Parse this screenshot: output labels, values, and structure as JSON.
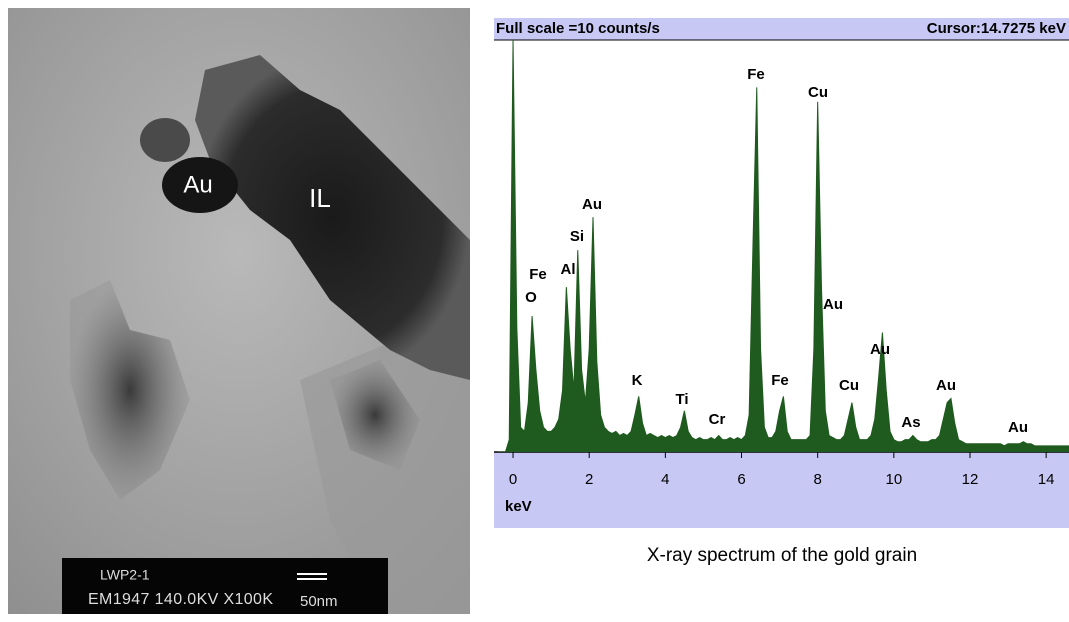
{
  "micrograph": {
    "labels": [
      "Au",
      "IL"
    ],
    "scale_bar": {
      "line1": "LWP2-1",
      "line2": "EM1947 140.0KV X100K",
      "scale": "50nm"
    }
  },
  "chart_data": {
    "type": "area",
    "title": "Full scale =10  counts/s",
    "cursor": "Cursor:14.7275 keV",
    "xlabel": "keV",
    "caption": "X-ray spectrum of the gold grain",
    "color": "#1f5a1f",
    "xlim": [
      -0.5,
      14.6
    ],
    "xticks": [
      0,
      2,
      4,
      6,
      8,
      10,
      12,
      14
    ],
    "ylim": [
      0,
      10
    ],
    "x": [
      -0.4,
      -0.3,
      -0.2,
      -0.1,
      0.0,
      0.1,
      0.2,
      0.3,
      0.4,
      0.5,
      0.6,
      0.7,
      0.8,
      0.9,
      1.0,
      1.1,
      1.2,
      1.3,
      1.4,
      1.5,
      1.6,
      1.7,
      1.8,
      1.9,
      2.0,
      2.1,
      2.2,
      2.3,
      2.4,
      2.5,
      2.6,
      2.7,
      2.8,
      2.9,
      3.0,
      3.1,
      3.2,
      3.3,
      3.4,
      3.5,
      3.6,
      3.7,
      3.8,
      3.9,
      4.0,
      4.1,
      4.2,
      4.3,
      4.4,
      4.5,
      4.6,
      4.7,
      4.8,
      4.9,
      5.0,
      5.1,
      5.2,
      5.3,
      5.4,
      5.5,
      5.6,
      5.7,
      5.8,
      5.9,
      6.0,
      6.1,
      6.2,
      6.3,
      6.4,
      6.5,
      6.6,
      6.7,
      6.8,
      6.9,
      7.0,
      7.1,
      7.2,
      7.3,
      7.4,
      7.5,
      7.6,
      7.7,
      7.8,
      7.9,
      8.0,
      8.1,
      8.2,
      8.3,
      8.4,
      8.5,
      8.6,
      8.7,
      8.8,
      8.9,
      9.0,
      9.1,
      9.2,
      9.3,
      9.4,
      9.5,
      9.6,
      9.7,
      9.8,
      9.9,
      10.0,
      10.1,
      10.2,
      10.3,
      10.4,
      10.5,
      10.6,
      10.7,
      10.8,
      10.9,
      11.0,
      11.1,
      11.2,
      11.3,
      11.4,
      11.5,
      11.6,
      11.7,
      11.8,
      11.9,
      12.0,
      12.1,
      12.2,
      12.3,
      12.4,
      12.5,
      12.6,
      12.7,
      12.8,
      12.9,
      13.0,
      13.1,
      13.2,
      13.3,
      13.4,
      13.5,
      13.6,
      13.7,
      13.8,
      13.9,
      14.0,
      14.1,
      14.2,
      14.3,
      14.4,
      14.5,
      14.6
    ],
    "values": [
      0,
      0,
      0,
      0.3,
      10,
      3,
      0.6,
      0.5,
      1.2,
      3.3,
      2.0,
      1.0,
      0.6,
      0.5,
      0.5,
      0.6,
      0.8,
      1.5,
      4.0,
      2.5,
      1.5,
      4.9,
      2.0,
      1.2,
      2.5,
      5.7,
      2.2,
      0.9,
      0.6,
      0.5,
      0.45,
      0.5,
      0.4,
      0.45,
      0.4,
      0.5,
      0.9,
      1.35,
      0.7,
      0.4,
      0.45,
      0.4,
      0.35,
      0.4,
      0.35,
      0.4,
      0.35,
      0.4,
      0.6,
      1.0,
      0.5,
      0.35,
      0.3,
      0.35,
      0.3,
      0.3,
      0.35,
      0.3,
      0.4,
      0.3,
      0.3,
      0.35,
      0.3,
      0.35,
      0.3,
      0.4,
      0.9,
      5.0,
      8.85,
      2.5,
      0.6,
      0.35,
      0.35,
      0.5,
      1.0,
      1.35,
      0.5,
      0.3,
      0.3,
      0.3,
      0.3,
      0.3,
      0.4,
      2.5,
      8.5,
      4.0,
      1.0,
      0.4,
      0.35,
      0.3,
      0.3,
      0.4,
      0.8,
      1.2,
      0.6,
      0.3,
      0.3,
      0.3,
      0.4,
      0.8,
      1.8,
      2.9,
      1.5,
      0.5,
      0.3,
      0.25,
      0.25,
      0.3,
      0.3,
      0.4,
      0.3,
      0.25,
      0.25,
      0.25,
      0.3,
      0.3,
      0.4,
      0.8,
      1.2,
      1.3,
      0.7,
      0.3,
      0.25,
      0.2,
      0.2,
      0.2,
      0.2,
      0.2,
      0.2,
      0.2,
      0.2,
      0.2,
      0.2,
      0.15,
      0.2,
      0.2,
      0.2,
      0.2,
      0.25,
      0.2,
      0.2,
      0.15,
      0.15,
      0.15,
      0.15,
      0.15,
      0.15,
      0.15,
      0.15,
      0.15,
      0.15
    ],
    "annotations": [
      "Fe",
      "O",
      "Al",
      "Si",
      "Au",
      "K",
      "Ti",
      "Cr",
      "Fe",
      "Fe",
      "Cu",
      "Au",
      "Cu",
      "Au",
      "As",
      "Au",
      "Au"
    ]
  }
}
